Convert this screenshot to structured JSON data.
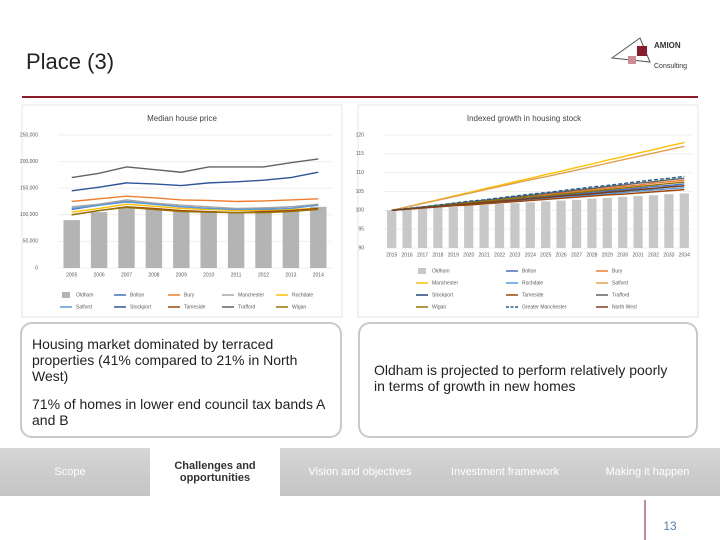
{
  "slide": {
    "title": "Place (3)",
    "logo": [
      "AMION",
      "Consulting"
    ],
    "left_box": [
      "Housing market dominated by terraced properties (41% compared to 21% in North West)",
      "71% of homes in lower end council tax bands A and B"
    ],
    "right_box": "Oldham is projected to perform relatively poorly in terms of growth in new homes",
    "nav": [
      "Scope",
      "Challenges and opportunities",
      "Vision and objectives",
      "Investment framework",
      "Making it happen"
    ],
    "active_nav": 1,
    "page_number": "13"
  },
  "chart_data": [
    {
      "type": "combo",
      "title": "Median house price",
      "legend": "bottom",
      "legend_columns": 5,
      "categories": [
        "2005",
        "2006",
        "2007",
        "2008",
        "2009",
        "2010",
        "2011",
        "2012",
        "2013",
        "2014"
      ],
      "ylim": [
        0,
        250000
      ],
      "yticks": [
        0,
        {
          "value": 50000,
          "label": "50,000"
        },
        {
          "value": 100000,
          "label": "100,000"
        },
        {
          "value": 150000,
          "label": "150,000"
        },
        {
          "value": 200000,
          "label": "200,000"
        },
        {
          "value": 250000,
          "label": "250,000"
        }
      ],
      "series": [
        {
          "name": "Oldham",
          "type": "bar",
          "color": "#b4b4b4",
          "values": [
            90000,
            105000,
            115000,
            112000,
            108000,
            107000,
            106000,
            107000,
            110000,
            115000
          ]
        },
        {
          "name": "Bolton",
          "type": "line",
          "color": "#4472c4",
          "values": [
            110000,
            118000,
            125000,
            120000,
            115000,
            112000,
            110000,
            112000,
            115000,
            118000
          ]
        },
        {
          "name": "Bury",
          "type": "line",
          "color": "#ed7d31",
          "values": [
            125000,
            130000,
            135000,
            132000,
            128000,
            127000,
            125000,
            126000,
            128000,
            130000
          ]
        },
        {
          "name": "Manchester",
          "type": "line",
          "color": "#a5a5a5",
          "values": [
            115000,
            120000,
            128000,
            122000,
            118000,
            115000,
            112000,
            113000,
            115000,
            120000
          ]
        },
        {
          "name": "Rochdale",
          "type": "line",
          "color": "#ffc000",
          "values": [
            105000,
            112000,
            120000,
            116000,
            112000,
            110000,
            108000,
            108000,
            110000,
            112000
          ]
        },
        {
          "name": "Salford",
          "type": "line",
          "color": "#5b9bd5",
          "values": [
            112000,
            118000,
            124000,
            120000,
            115000,
            112000,
            110000,
            110000,
            112000,
            118000
          ]
        },
        {
          "name": "Stockport",
          "type": "line",
          "color": "#2f5597",
          "values": [
            145000,
            152000,
            160000,
            158000,
            155000,
            160000,
            162000,
            165000,
            170000,
            180000
          ]
        },
        {
          "name": "Tameside",
          "type": "line",
          "color": "#9e480e",
          "values": [
            100000,
            108000,
            115000,
            112000,
            108000,
            106000,
            104000,
            106000,
            108000,
            112000
          ]
        },
        {
          "name": "Trafford",
          "type": "line",
          "color": "#636363",
          "values": [
            170000,
            178000,
            190000,
            185000,
            180000,
            190000,
            190000,
            190000,
            198000,
            205000
          ]
        },
        {
          "name": "Wigan",
          "type": "line",
          "color": "#997300",
          "values": [
            100000,
            108000,
            114000,
            110000,
            106000,
            105000,
            104000,
            104000,
            106000,
            110000
          ]
        }
      ]
    },
    {
      "type": "combo",
      "title": "Indexed growth in housing stock",
      "legend": "bottom",
      "legend_columns": 3,
      "categories": [
        "2015",
        "2016",
        "2017",
        "2018",
        "2019",
        "2020",
        "2021",
        "2022",
        "2023",
        "2024",
        "2025",
        "2026",
        "2027",
        "2028",
        "2029",
        "2030",
        "2031",
        "2032",
        "2033",
        "2034"
      ],
      "ylim": [
        90,
        120
      ],
      "yticks": [
        90,
        95,
        100,
        105,
        110,
        115,
        120
      ],
      "series": [
        {
          "name": "Oldham",
          "type": "bar",
          "color": "#c8c8c8",
          "values": [
            100,
            100.2,
            100.5,
            100.7,
            100.9,
            101.2,
            101.4,
            101.7,
            101.9,
            102.1,
            102.4,
            102.6,
            102.8,
            103.1,
            103.3,
            103.6,
            103.8,
            104,
            104.3,
            104.5
          ]
        },
        {
          "name": "Bolton",
          "type": "line",
          "color": "#4472c4",
          "values": [
            100,
            100.4,
            100.7,
            101.1,
            101.5,
            101.8,
            102.2,
            102.6,
            102.9,
            103.3,
            103.7,
            104.1,
            104.4,
            104.8,
            105.2,
            105.5,
            105.9,
            106.3,
            106.6,
            107
          ]
        },
        {
          "name": "Bury",
          "type": "line",
          "color": "#ed7d31",
          "values": [
            100,
            100.4,
            100.8,
            101.3,
            101.7,
            102.1,
            102.5,
            102.9,
            103.4,
            103.8,
            104.2,
            104.6,
            105.1,
            105.5,
            105.9,
            106.3,
            106.7,
            107.2,
            107.6,
            108
          ]
        },
        {
          "name": "Manchester",
          "type": "line",
          "color": "#ffc000",
          "values": [
            100,
            100.9,
            101.9,
            102.8,
            103.8,
            104.7,
            105.7,
            106.6,
            107.6,
            108.5,
            109.5,
            110.4,
            111.4,
            112.3,
            113.3,
            114.2,
            115.2,
            116.1,
            117.1,
            118
          ]
        },
        {
          "name": "Rochdale",
          "type": "line",
          "color": "#5b9bd5",
          "values": [
            100,
            100.3,
            100.6,
            100.9,
            101.3,
            101.6,
            101.9,
            102.2,
            102.5,
            102.8,
            103.2,
            103.5,
            103.8,
            104.1,
            104.4,
            104.7,
            105.1,
            105.4,
            105.7,
            106
          ]
        },
        {
          "name": "Salford",
          "type": "line",
          "color": "#e0a050",
          "values": [
            100,
            100.9,
            101.8,
            102.7,
            103.6,
            104.5,
            105.4,
            106.3,
            107.2,
            108.1,
            108.9,
            109.8,
            110.7,
            111.6,
            112.5,
            113.4,
            114.3,
            115.2,
            116.1,
            117
          ]
        },
        {
          "name": "Stockport",
          "type": "line",
          "color": "#264478",
          "values": [
            100,
            100.3,
            100.7,
            101,
            101.4,
            101.7,
            102.1,
            102.4,
            102.7,
            103.1,
            103.4,
            103.8,
            104.1,
            104.4,
            104.8,
            105.1,
            105.5,
            105.8,
            106.2,
            106.5
          ]
        },
        {
          "name": "Tameside",
          "type": "line",
          "color": "#9e480e",
          "values": [
            100,
            100.3,
            100.6,
            100.9,
            101.2,
            101.4,
            101.7,
            102,
            102.3,
            102.6,
            102.9,
            103.2,
            103.5,
            103.8,
            104.1,
            104.3,
            104.6,
            104.9,
            105.2,
            105.5
          ]
        },
        {
          "name": "Trafford",
          "type": "line",
          "color": "#636363",
          "values": [
            100,
            100.4,
            100.9,
            101.3,
            101.8,
            102.2,
            102.7,
            103.1,
            103.6,
            104,
            104.5,
            104.9,
            105.4,
            105.8,
            106.3,
            106.7,
            107.2,
            107.6,
            108.1,
            108.5
          ]
        },
        {
          "name": "Wigan",
          "type": "line",
          "color": "#997300",
          "values": [
            100,
            100.4,
            100.8,
            101.2,
            101.6,
            102,
            102.4,
            102.8,
            103.2,
            103.6,
            103.9,
            104.3,
            104.7,
            105.1,
            105.5,
            105.9,
            106.3,
            106.7,
            107.1,
            107.5
          ]
        },
        {
          "name": "Greater Manchester",
          "type": "line",
          "dash": true,
          "color": "#255e91",
          "values": [
            100,
            100.5,
            100.9,
            101.4,
            101.9,
            102.4,
            102.8,
            103.3,
            103.8,
            104.3,
            104.7,
            105.2,
            105.7,
            106.2,
            106.6,
            107.1,
            107.6,
            108.1,
            108.5,
            109
          ]
        },
        {
          "name": "North West",
          "type": "line",
          "color": "#7b3f1e",
          "values": [
            100,
            100.3,
            100.7,
            101,
            101.4,
            101.7,
            102.1,
            102.4,
            102.7,
            103.1,
            103.4,
            103.8,
            104.1,
            104.4,
            104.8,
            105.1,
            105.5,
            105.8,
            106.2,
            106.5
          ]
        }
      ]
    }
  ]
}
